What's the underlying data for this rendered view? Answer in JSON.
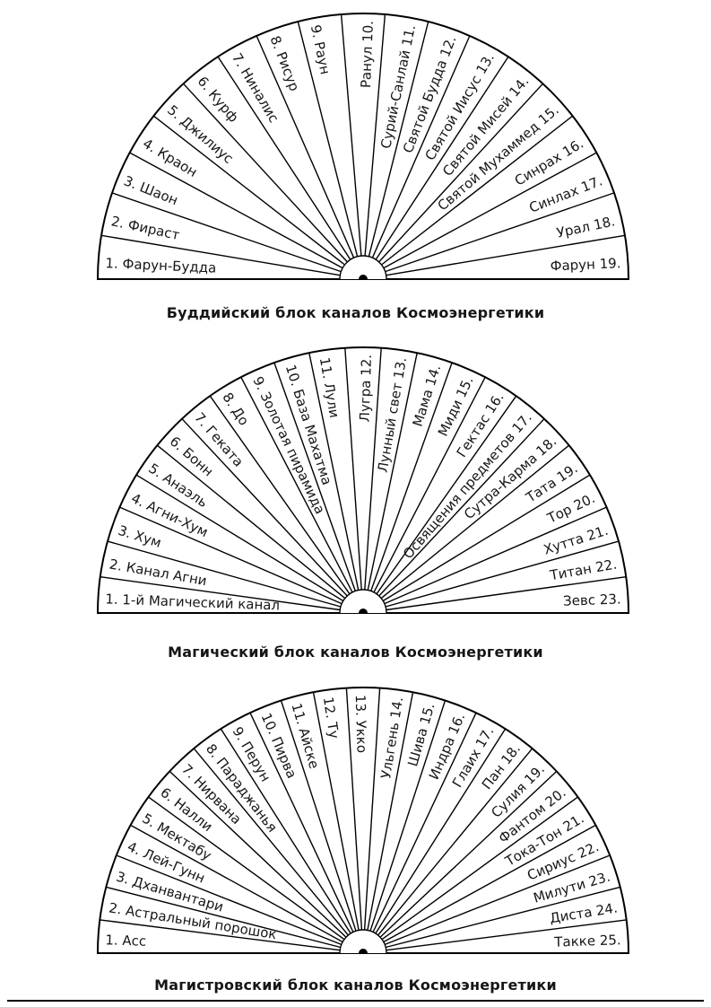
{
  "page": {
    "background_color": "#ffffff",
    "line_color": "#000000",
    "text_color": "#161616"
  },
  "charts": [
    {
      "title": "Буддийский блок каналов Космоэнергетики",
      "sectors": [
        "1. Фарун-Будда",
        "2. Фираст",
        "3. Шаон",
        "4. Краон",
        "5. Джилиус",
        "6. Курф",
        "7. Ниналис",
        "8. Рисур",
        "9. Раун",
        "Ранул 10.",
        "Сурий-Санлай 11.",
        "Святой Будда 12.",
        "Святой Иисус 13.",
        "Святой Мисей 14.",
        "Святой Мухаммед 15.",
        "Синрах 16.",
        "Синлах 17.",
        "Урал 18.",
        "Фарун 19."
      ]
    },
    {
      "title": "Магический блок каналов Космоэнергетики",
      "sectors": [
        "1. 1-й Магический канал",
        "2. Канал Агни",
        "3. Хум",
        "4. Агни-Хум",
        "5. Анаэль",
        "6. Бонн",
        "7. Геката",
        "8. До",
        "9. Золотая пирамида",
        "10. База Махатма",
        "11. Лули",
        "Лугра 12.",
        "Лунный свет 13.",
        "Мама 14.",
        "Миди 15.",
        "Гектас 16.",
        "Освящения предметов 17.",
        "Сутра-Карма 18.",
        "Тата 19.",
        "Тор 20.",
        "Хутта 21.",
        "Титан 22.",
        "Зевс 23."
      ]
    },
    {
      "title": "Магистровский блок каналов Космоэнергетики",
      "sectors": [
        "1. Асс",
        "2. Астральный порошок",
        "3. Дханвантари",
        "4. Лей-Гунн",
        "5. Мектабу",
        "6. Налли",
        "7. Нирвана",
        "8. Параджанья",
        "9. Перун",
        "10. Пирва",
        "11. Айске",
        "12. Ту",
        "13. Укко",
        "Ульгень 14.",
        "Шива 15.",
        "Индра 16.",
        "Глаих 17.",
        "Пан 18.",
        "Сулия 19.",
        "Фантом 20.",
        "Тока-Тон 21.",
        "Сириус 22.",
        "Милути 23.",
        "Диста 24.",
        "Такке 25."
      ]
    }
  ]
}
